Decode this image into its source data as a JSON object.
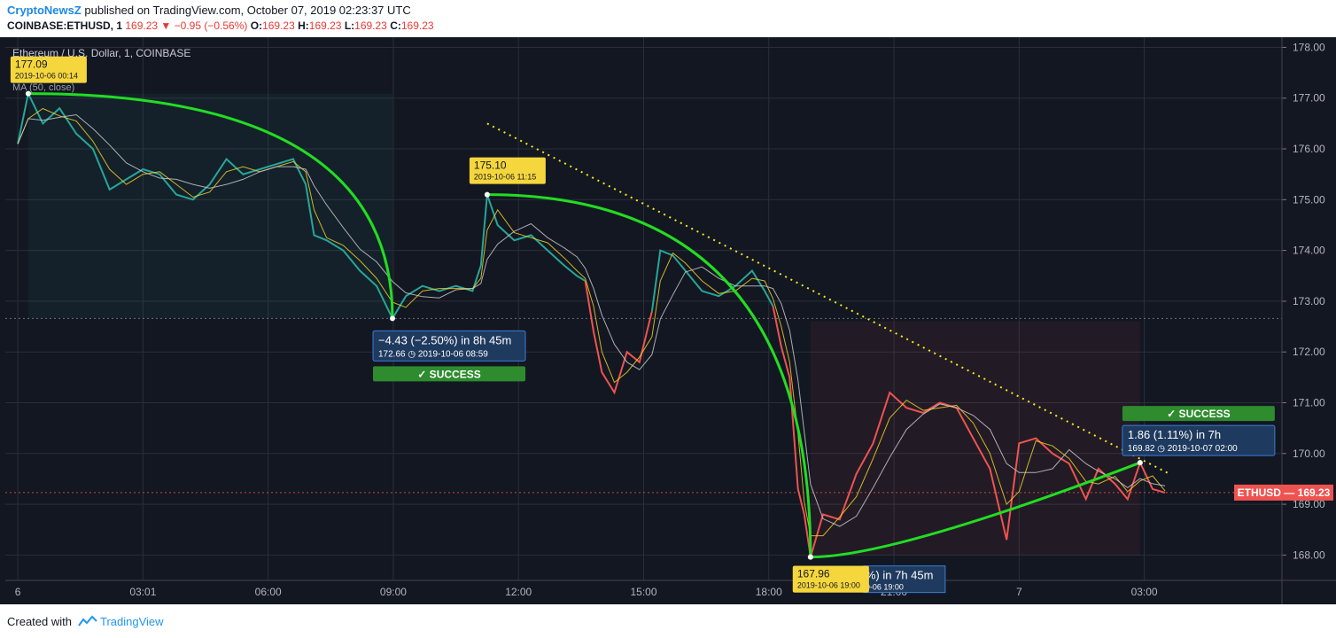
{
  "header": {
    "author": "CryptoNewsZ",
    "published_text": "published on TradingView.com, October 07, 2019 02:23:37 UTC",
    "symbol": "COINBASE:ETHUSD, 1",
    "last": "169.23",
    "change": "−0.95 (−0.56%)",
    "o_label": "O:",
    "o_value": "169.23",
    "h_label": "H:",
    "h_value": "169.23",
    "l_label": "L:",
    "l_value": "169.23",
    "c_label": "C:",
    "c_value": "169.23"
  },
  "legend": {
    "title": "Ethereum / U.S. Dollar, 1, COINBASE",
    "ma_label": "MA (50, close)"
  },
  "footer": {
    "created_with": "Created with",
    "brand": "TradingView"
  },
  "chart_data": {
    "type": "line",
    "title": "Ethereum / U.S. Dollar, 1, COINBASE",
    "ylim": [
      167.5,
      178.2
    ],
    "y_ticks": [
      "178.00",
      "177.00",
      "176.00",
      "175.00",
      "174.00",
      "173.00",
      "172.00",
      "171.00",
      "170.00",
      "169.00",
      "168.00"
    ],
    "x_ticks": [
      "6",
      "03:01",
      "06:00",
      "09:00",
      "12:00",
      "15:00",
      "18:00",
      "21:00",
      "7",
      "03:00"
    ],
    "x_tick_hours": [
      0,
      3,
      6,
      9,
      12,
      15,
      18,
      21,
      24,
      27
    ],
    "xlim_hours": [
      -0.3,
      30.3
    ],
    "current_price": {
      "label": "ETHUSD",
      "value": "169.23",
      "price": 169.23
    },
    "series": [
      {
        "name": "ETHUSD",
        "color_up": "#26a69a",
        "color_down": "#ef5350",
        "points": [
          [
            0,
            176.1
          ],
          [
            0.25,
            177.09
          ],
          [
            0.6,
            176.5
          ],
          [
            1.0,
            176.8
          ],
          [
            1.4,
            176.3
          ],
          [
            1.8,
            176.0
          ],
          [
            2.2,
            175.2
          ],
          [
            2.6,
            175.4
          ],
          [
            3.0,
            175.6
          ],
          [
            3.4,
            175.5
          ],
          [
            3.8,
            175.1
          ],
          [
            4.2,
            175.0
          ],
          [
            4.6,
            175.3
          ],
          [
            5.0,
            175.8
          ],
          [
            5.4,
            175.5
          ],
          [
            5.8,
            175.6
          ],
          [
            6.2,
            175.7
          ],
          [
            6.6,
            175.8
          ],
          [
            6.9,
            175.3
          ],
          [
            7.1,
            174.3
          ],
          [
            7.4,
            174.2
          ],
          [
            7.8,
            174.0
          ],
          [
            8.2,
            173.6
          ],
          [
            8.6,
            173.3
          ],
          [
            8.98,
            172.66
          ],
          [
            9.3,
            173.1
          ],
          [
            9.7,
            173.3
          ],
          [
            10.1,
            173.2
          ],
          [
            10.5,
            173.3
          ],
          [
            10.9,
            173.2
          ],
          [
            11.1,
            173.7
          ],
          [
            11.25,
            175.1
          ],
          [
            11.5,
            174.5
          ],
          [
            11.9,
            174.2
          ],
          [
            12.3,
            174.3
          ],
          [
            12.7,
            174.0
          ],
          [
            13.1,
            173.7
          ],
          [
            13.4,
            173.5
          ],
          [
            13.6,
            173.4
          ],
          [
            13.8,
            172.4
          ],
          [
            14.0,
            171.6
          ],
          [
            14.3,
            171.2
          ],
          [
            14.6,
            172.0
          ],
          [
            14.9,
            171.8
          ],
          [
            15.2,
            172.8
          ],
          [
            15.4,
            174.0
          ],
          [
            15.7,
            173.9
          ],
          [
            16.0,
            173.6
          ],
          [
            16.4,
            173.2
          ],
          [
            16.8,
            173.1
          ],
          [
            17.2,
            173.3
          ],
          [
            17.6,
            173.6
          ],
          [
            17.9,
            173.2
          ],
          [
            18.1,
            172.9
          ],
          [
            18.3,
            172.1
          ],
          [
            18.5,
            171.5
          ],
          [
            18.7,
            169.3
          ],
          [
            18.85,
            168.8
          ],
          [
            19.0,
            167.96
          ],
          [
            19.3,
            168.8
          ],
          [
            19.7,
            168.7
          ],
          [
            20.1,
            169.6
          ],
          [
            20.5,
            170.2
          ],
          [
            20.9,
            171.2
          ],
          [
            21.3,
            170.9
          ],
          [
            21.7,
            170.8
          ],
          [
            22.1,
            171.0
          ],
          [
            22.5,
            170.9
          ],
          [
            22.9,
            170.3
          ],
          [
            23.3,
            169.7
          ],
          [
            23.7,
            168.3
          ],
          [
            24.0,
            170.2
          ],
          [
            24.4,
            170.3
          ],
          [
            24.8,
            170.0
          ],
          [
            25.2,
            169.8
          ],
          [
            25.6,
            169.1
          ],
          [
            25.9,
            169.7
          ],
          [
            26.3,
            169.4
          ],
          [
            26.6,
            169.1
          ],
          [
            26.9,
            169.82
          ],
          [
            27.2,
            169.3
          ],
          [
            27.5,
            169.23
          ]
        ]
      },
      {
        "name": "MA (50, close)",
        "color": "#c8c8c8"
      }
    ],
    "annotations": [
      {
        "type": "price_label",
        "price_text": "177.09",
        "date_text": "2019-10-06 00:14",
        "hour": 0.25,
        "price": 177.09
      },
      {
        "type": "price_label",
        "price_text": "175.10",
        "date_text": "2019-10-06 11:15",
        "hour": 11.25,
        "price": 175.1
      },
      {
        "type": "price_label",
        "price_text": "167.96",
        "date_text": "2019-10-06 19:00",
        "hour": 19.0,
        "price": 167.96
      },
      {
        "type": "forecast",
        "change_text": "−4.43 (−2.50%) in 8h 45m",
        "target_text": "172.66",
        "date_text": "2019-10-06  08:59",
        "status": "SUCCESS"
      },
      {
        "type": "forecast",
        "change_text": "1.86 (1.11%) in 7h",
        "target_text": "169.82",
        "date_text": "2019-10-07  02:00",
        "status": "SUCCESS"
      },
      {
        "type": "forecast_partial",
        "change_text": "%) in 7h 45m",
        "date_text": "0-06  19:00"
      },
      {
        "type": "dotted_trendline",
        "from": [
          11.25,
          176.5
        ],
        "to": [
          27.6,
          169.6
        ]
      },
      {
        "type": "arc",
        "from": [
          0.25,
          177.09
        ],
        "to": [
          8.98,
          172.66
        ]
      },
      {
        "type": "arc",
        "from": [
          11.25,
          175.1
        ],
        "to": [
          19.0,
          167.96
        ]
      },
      {
        "type": "arc",
        "from": [
          19.0,
          167.96
        ],
        "to": [
          26.9,
          169.82
        ]
      }
    ]
  },
  "colors": {
    "background": "#131722",
    "grid": "#2a2e39",
    "up": "#26a69a",
    "down": "#ef5350",
    "arc": "#22dd22",
    "trend": "#f5e91e",
    "label_yellow": "#f5d63d",
    "forecast_blue": "#1f3a5f",
    "success_green": "#2e8b2e"
  }
}
